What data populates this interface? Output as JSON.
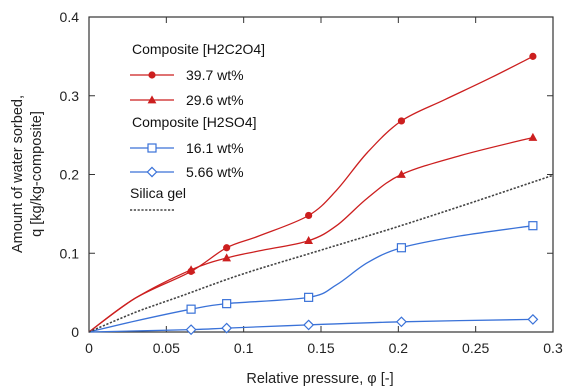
{
  "chart_data": {
    "type": "line",
    "xlabel": "Relative pressure, φ [-]",
    "ylabel_line1": "Amount of water sorbed,",
    "ylabel_line2": "q [kg/kg-composite]",
    "xlim": [
      0,
      0.3
    ],
    "ylim": [
      0,
      0.4
    ],
    "xticks": [
      "0",
      "0.05",
      "0.1",
      "0.15",
      "0.2",
      "0.25",
      "0.3"
    ],
    "yticks": [
      "0",
      "0.1",
      "0.2",
      "0.3",
      "0.4"
    ],
    "legend_groups": [
      {
        "header": "Composite [H2C2O4]"
      },
      {
        "header": "Composite [H2SO4]"
      }
    ],
    "series": [
      {
        "name": "39.7 wt%",
        "color": "#cc1f1f",
        "marker": "circle",
        "x": [
          0.066,
          0.089,
          0.142,
          0.202,
          0.287
        ],
        "y": [
          0.077,
          0.107,
          0.148,
          0.268,
          0.35
        ],
        "curve": [
          [
            0,
            0
          ],
          [
            0.03,
            0.043
          ],
          [
            0.066,
            0.077
          ],
          [
            0.089,
            0.107
          ],
          [
            0.11,
            0.122
          ],
          [
            0.142,
            0.148
          ],
          [
            0.16,
            0.18
          ],
          [
            0.18,
            0.228
          ],
          [
            0.202,
            0.268
          ],
          [
            0.23,
            0.295
          ],
          [
            0.26,
            0.323
          ],
          [
            0.287,
            0.35
          ]
        ]
      },
      {
        "name": "29.6 wt%",
        "color": "#cc1f1f",
        "marker": "triangle",
        "x": [
          0.066,
          0.089,
          0.142,
          0.202,
          0.287
        ],
        "y": [
          0.079,
          0.094,
          0.116,
          0.2,
          0.247
        ],
        "curve": [
          [
            0,
            0
          ],
          [
            0.03,
            0.043
          ],
          [
            0.066,
            0.079
          ],
          [
            0.089,
            0.094
          ],
          [
            0.11,
            0.103
          ],
          [
            0.142,
            0.116
          ],
          [
            0.16,
            0.135
          ],
          [
            0.18,
            0.17
          ],
          [
            0.202,
            0.2
          ],
          [
            0.24,
            0.224
          ],
          [
            0.287,
            0.247
          ]
        ]
      },
      {
        "name": "16.1 wt%",
        "color": "#3a72d8",
        "marker": "square",
        "x": [
          0.066,
          0.089,
          0.142,
          0.202,
          0.287
        ],
        "y": [
          0.029,
          0.036,
          0.044,
          0.107,
          0.135
        ],
        "curve": [
          [
            0,
            0
          ],
          [
            0.03,
            0.014
          ],
          [
            0.066,
            0.029
          ],
          [
            0.089,
            0.036
          ],
          [
            0.142,
            0.044
          ],
          [
            0.16,
            0.06
          ],
          [
            0.18,
            0.088
          ],
          [
            0.202,
            0.107
          ],
          [
            0.24,
            0.122
          ],
          [
            0.287,
            0.135
          ]
        ]
      },
      {
        "name": "5.66 wt%",
        "color": "#3a72d8",
        "marker": "diamond",
        "x": [
          0.066,
          0.089,
          0.142,
          0.202,
          0.287
        ],
        "y": [
          0.003,
          0.005,
          0.009,
          0.013,
          0.016
        ],
        "curve": [
          [
            0,
            0
          ],
          [
            0.066,
            0.003
          ],
          [
            0.089,
            0.005
          ],
          [
            0.142,
            0.009
          ],
          [
            0.202,
            0.013
          ],
          [
            0.287,
            0.016
          ]
        ]
      },
      {
        "name": "Silica gel",
        "color": "#444444",
        "marker": "none",
        "dashed": true,
        "curve": [
          [
            0,
            0
          ],
          [
            0.03,
            0.025
          ],
          [
            0.06,
            0.046
          ],
          [
            0.1,
            0.074
          ],
          [
            0.15,
            0.104
          ],
          [
            0.2,
            0.134
          ],
          [
            0.25,
            0.166
          ],
          [
            0.3,
            0.199
          ]
        ]
      }
    ],
    "grid": false
  }
}
